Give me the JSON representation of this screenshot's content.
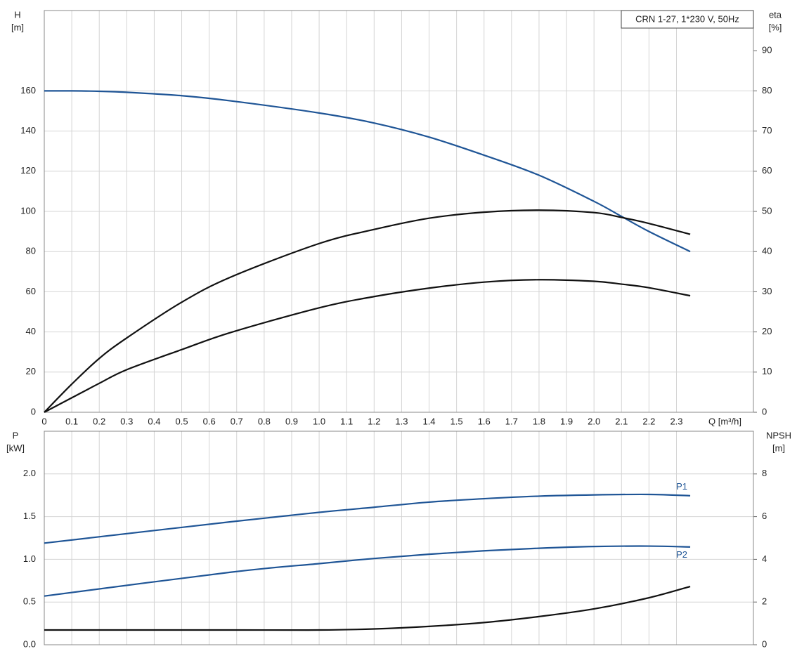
{
  "chart_data": [
    {
      "type": "line",
      "title": "CRN 1-27, 1*230 V, 50Hz",
      "ylabel": "H",
      "yunit": "[m]",
      "y2label": "eta",
      "y2unit": "[%]",
      "xlabel": "Q [m³/h]",
      "x": [
        0,
        0.1,
        0.2,
        0.3,
        0.5,
        0.68,
        1.0,
        1.2,
        1.4,
        1.6,
        1.8,
        2.0,
        2.1,
        2.2,
        2.35
      ],
      "series": [
        {
          "color": "#1f5596",
          "values": [
            160,
            160,
            159.8,
            159.3,
            157.6,
            155,
            149,
            144,
            137,
            128,
            118,
            105,
            97.5,
            90,
            80
          ]
        },
        {
          "color": "#111111",
          "axis": "y2",
          "values": [
            0,
            7,
            13.4,
            18.5,
            27.4,
            33.7,
            42,
            45.5,
            48.3,
            49.8,
            50.3,
            49.7,
            48.5,
            47,
            44.3
          ]
        },
        {
          "color": "#111111",
          "axis": "y2",
          "values": [
            0,
            3.6,
            7.2,
            10.6,
            15.6,
            19.9,
            26,
            28.8,
            30.9,
            32.4,
            33,
            32.6,
            31.9,
            31,
            29
          ]
        }
      ],
      "xlim": [
        0,
        2.58
      ],
      "xticks": [
        0,
        0.1,
        0.2,
        0.3,
        0.4,
        0.5,
        0.6,
        0.7,
        0.8,
        0.9,
        {
          "value": 1,
          "label": "1.0"
        },
        1.1,
        1.2,
        1.3,
        1.4,
        1.5,
        1.6,
        1.7,
        1.8,
        1.9,
        {
          "value": 2,
          "label": "2.0"
        },
        2.1,
        2.2,
        2.3
      ],
      "ylim": [
        0,
        200
      ],
      "yticks": [
        0,
        20,
        40,
        60,
        80,
        100,
        120,
        140,
        160
      ],
      "y2lim": [
        0,
        100
      ],
      "y2ticks": [
        0,
        10,
        20,
        30,
        40,
        50,
        60,
        70,
        80,
        90
      ],
      "grid": true
    },
    {
      "type": "line",
      "ylabel": "P",
      "yunit": "[kW]",
      "y2label": "NPSH",
      "y2unit": "[m]",
      "x": [
        0,
        0.68,
        1.0,
        1.2,
        1.4,
        1.6,
        1.8,
        2.0,
        2.2,
        2.35
      ],
      "series": [
        {
          "name": "P1",
          "color": "#1f5596",
          "values": [
            1.19,
            1.44,
            1.55,
            1.61,
            1.67,
            1.71,
            1.74,
            1.755,
            1.76,
            1.745
          ]
        },
        {
          "name": "P2",
          "color": "#1f5596",
          "values": [
            0.57,
            0.85,
            0.95,
            1.01,
            1.06,
            1.1,
            1.13,
            1.15,
            1.155,
            1.145
          ]
        },
        {
          "color": "#111111",
          "axis": "y2",
          "values": [
            0.69,
            0.69,
            0.69,
            0.74,
            0.86,
            1.04,
            1.32,
            1.68,
            2.2,
            2.73
          ]
        }
      ],
      "xlim": [
        0,
        2.58
      ],
      "ylim": [
        0,
        2.5
      ],
      "yticks": [
        {
          "value": 0,
          "label": "0.0"
        },
        0.5,
        {
          "value": 1,
          "label": "1.0"
        },
        1.5,
        {
          "value": 2,
          "label": "2.0"
        }
      ],
      "y2lim": [
        0,
        10
      ],
      "y2ticks": [
        0,
        2,
        4,
        6,
        8
      ],
      "grid": true
    }
  ]
}
